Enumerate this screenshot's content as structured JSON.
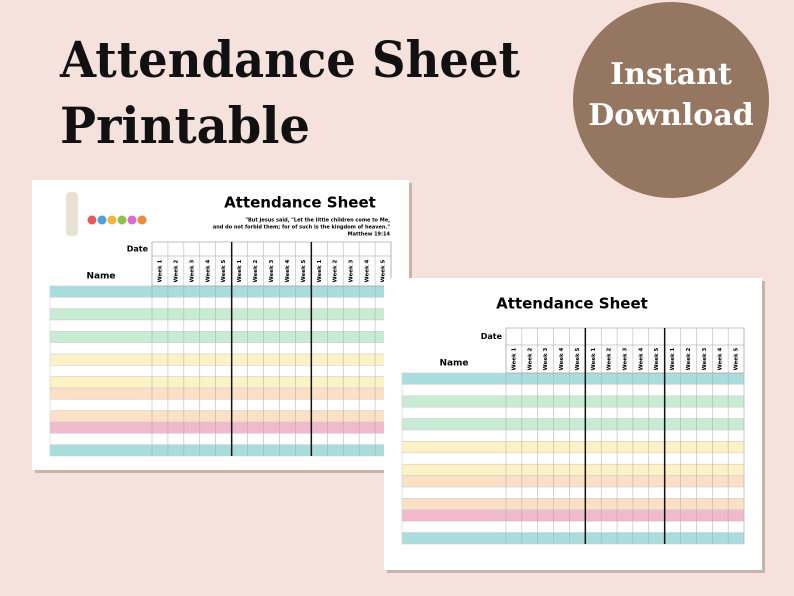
{
  "header": {
    "title_lines": [
      "Attendance Sheet",
      "Printable"
    ]
  },
  "badge": {
    "lines": [
      "Instant",
      "Download"
    ]
  },
  "sheets": [
    {
      "title": "Attendance Sheet",
      "quote": [
        "\"But Jesus said, \"Let the little children come to Me,",
        "and do not forbid them; for of such is the kingdom of heaven.\""
      ],
      "reference": "Matthew 19:14",
      "date_label": "Date",
      "name_label": "Name",
      "week_labels": [
        "Week 1",
        "Week 2",
        "Week 3",
        "Week 4",
        "Week 5",
        "Week 1",
        "Week 2",
        "Week 3",
        "Week 4",
        "Week 5",
        "Week 1",
        "Week 2",
        "Week 3",
        "Week 4",
        "Week 5"
      ]
    },
    {
      "title": "Attendance Sheet",
      "date_label": "Date",
      "name_label": "Name",
      "week_labels": [
        "Week 1",
        "Week 2",
        "Week 3",
        "Week 4",
        "Week 5",
        "Week 1",
        "Week 2",
        "Week 3",
        "Week 4",
        "Week 5",
        "Week 1",
        "Week 2",
        "Week 3",
        "Week 4",
        "Week 5"
      ]
    }
  ]
}
